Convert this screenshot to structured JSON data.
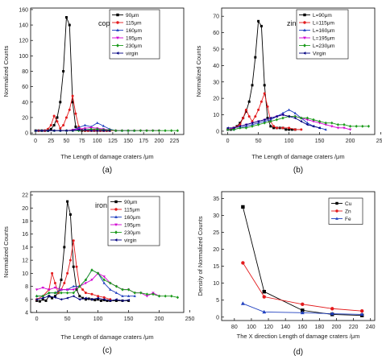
{
  "chart_data": [
    {
      "type": "line",
      "panel_label": "(a)",
      "annotation": "copper",
      "xlabel": "The  Length of damage craters /μm",
      "ylabel": "Normalized Counts",
      "xlim": [
        -8,
        240
      ],
      "ylim": [
        -2,
        162
      ],
      "xticks": [
        0,
        25,
        50,
        75,
        100,
        125,
        150,
        175,
        200,
        225
      ],
      "yticks": [
        0,
        20,
        40,
        60,
        80,
        100,
        120,
        140,
        160
      ],
      "legend_position": "top-right",
      "series": [
        {
          "name": "90μm",
          "color": "#000000",
          "marker": "square",
          "x": [
            0,
            5,
            10,
            15,
            20,
            25,
            30,
            35,
            40,
            45,
            50,
            55,
            60,
            65,
            70,
            75,
            80,
            85,
            90,
            95,
            100,
            105,
            110,
            115,
            120
          ],
          "y": [
            3,
            3,
            3,
            3,
            3,
            5,
            10,
            20,
            40,
            80,
            150,
            140,
            40,
            8,
            4,
            3,
            3,
            3,
            3,
            3,
            3,
            3,
            3,
            3,
            3
          ]
        },
        {
          "name": "115μm",
          "color": "#e31a1c",
          "marker": "circle",
          "x": [
            0,
            5,
            10,
            15,
            20,
            25,
            30,
            35,
            40,
            45,
            50,
            55,
            60,
            65,
            70,
            75,
            80,
            85,
            90,
            95,
            100,
            105,
            110,
            115,
            120,
            130
          ],
          "y": [
            3,
            3,
            3,
            3,
            5,
            10,
            22,
            15,
            6,
            10,
            20,
            30,
            48,
            25,
            8,
            4,
            3,
            3,
            3,
            3,
            3,
            3,
            3,
            3,
            3,
            3
          ]
        },
        {
          "name": "160μm",
          "color": "#1f3fbf",
          "marker": "triangle",
          "x": [
            0,
            10,
            20,
            30,
            40,
            50,
            60,
            70,
            80,
            90,
            100,
            110,
            120,
            130,
            140,
            150,
            160
          ],
          "y": [
            3,
            3,
            3,
            3,
            3,
            3,
            4,
            7,
            10,
            8,
            13,
            9,
            5,
            3,
            3,
            3,
            3
          ]
        },
        {
          "name": "195μm",
          "color": "#d100d1",
          "marker": "triangle-down",
          "x": [
            0,
            10,
            20,
            30,
            40,
            50,
            60,
            70,
            80,
            90,
            100,
            110,
            120,
            130,
            140,
            150,
            160,
            170,
            180,
            190,
            200
          ],
          "y": [
            3,
            3,
            3,
            3,
            3,
            3,
            4,
            5,
            6,
            7,
            6,
            5,
            4,
            3,
            3,
            3,
            3,
            3,
            3,
            3,
            3
          ]
        },
        {
          "name": "230μm",
          "color": "#1a9a1a",
          "marker": "diamond",
          "x": [
            0,
            10,
            20,
            30,
            40,
            50,
            60,
            70,
            80,
            90,
            100,
            110,
            120,
            130,
            140,
            150,
            160,
            170,
            180,
            190,
            200,
            210,
            220,
            230
          ],
          "y": [
            3,
            3,
            3,
            3,
            3,
            3,
            3,
            3,
            4,
            5,
            5,
            4,
            4,
            3,
            3,
            3,
            3,
            3,
            3,
            3,
            3,
            3,
            3,
            3
          ]
        },
        {
          "name": "virgin",
          "color": "#000080",
          "marker": "triangle-left",
          "x": [
            0,
            10,
            20,
            30,
            40,
            50,
            60,
            70,
            80,
            90,
            100,
            110,
            120
          ],
          "y": [
            3,
            3,
            3,
            3,
            3,
            3,
            3,
            4,
            4,
            3,
            3,
            3,
            3
          ]
        }
      ]
    },
    {
      "type": "line",
      "panel_label": "(b)",
      "annotation": "zinc",
      "xlabel": "The  Length of damage craters /μm",
      "ylabel": "Normalized Counts",
      "xlim": [
        -10,
        240
      ],
      "ylim": [
        -2,
        75
      ],
      "xticks": [
        0,
        50,
        100,
        150,
        200,
        250
      ],
      "yticks": [
        0,
        10,
        20,
        30,
        40,
        50,
        60,
        70
      ],
      "legend_position": "top-right",
      "series": [
        {
          "name": "L=90μm",
          "color": "#000000",
          "marker": "square",
          "x": [
            0,
            5,
            10,
            15,
            20,
            25,
            30,
            35,
            40,
            45,
            50,
            55,
            60,
            65,
            70,
            75,
            80,
            85,
            90,
            95,
            100,
            105,
            110
          ],
          "y": [
            1,
            1,
            2,
            3,
            5,
            8,
            12,
            18,
            28,
            45,
            67,
            64,
            28,
            8,
            3,
            2,
            2,
            2,
            2,
            1,
            1,
            1,
            1
          ]
        },
        {
          "name": "L=115μm",
          "color": "#e31a1c",
          "marker": "circle",
          "x": [
            0,
            10,
            20,
            25,
            30,
            35,
            40,
            45,
            50,
            55,
            60,
            65,
            70,
            75,
            80,
            90,
            100,
            110,
            120
          ],
          "y": [
            1,
            2,
            4,
            8,
            13,
            9,
            6,
            9,
            13,
            18,
            23,
            15,
            6,
            3,
            2,
            2,
            2,
            1,
            1
          ]
        },
        {
          "name": "L=160μm",
          "color": "#1f3fbf",
          "marker": "triangle",
          "x": [
            0,
            10,
            20,
            30,
            40,
            50,
            60,
            70,
            80,
            90,
            100,
            110,
            120,
            130,
            140,
            150,
            160
          ],
          "y": [
            1,
            1,
            2,
            3,
            4,
            5,
            6,
            7,
            9,
            11,
            13,
            11,
            8,
            5,
            3,
            2,
            1
          ]
        },
        {
          "name": "L=195μm",
          "color": "#d100d1",
          "marker": "triangle-down",
          "x": [
            0,
            10,
            20,
            30,
            40,
            50,
            60,
            70,
            80,
            90,
            100,
            110,
            120,
            130,
            140,
            150,
            160,
            170,
            180,
            190,
            200
          ],
          "y": [
            1,
            2,
            3,
            4,
            5,
            6,
            7,
            8,
            9,
            10,
            9,
            9,
            8,
            7,
            6,
            5,
            4,
            3,
            2,
            2,
            1
          ]
        },
        {
          "name": "L=230μm",
          "color": "#1a9a1a",
          "marker": "diamond",
          "x": [
            0,
            10,
            20,
            30,
            40,
            50,
            60,
            70,
            80,
            90,
            100,
            110,
            120,
            130,
            140,
            150,
            160,
            170,
            180,
            190,
            200,
            210,
            220,
            230
          ],
          "y": [
            1,
            1,
            2,
            2,
            3,
            4,
            5,
            6,
            7,
            8,
            9,
            9,
            8,
            8,
            7,
            6,
            5,
            5,
            4,
            4,
            3,
            3,
            3,
            3
          ]
        },
        {
          "name": "Virgin",
          "color": "#000080",
          "marker": "triangle-left",
          "x": [
            0,
            10,
            20,
            30,
            40,
            50,
            60,
            70,
            80,
            90,
            100,
            110,
            120,
            130,
            140,
            150
          ],
          "y": [
            2,
            2,
            3,
            4,
            5,
            6,
            7,
            8,
            9,
            10,
            9,
            8,
            6,
            4,
            3,
            2
          ]
        }
      ]
    },
    {
      "type": "line",
      "panel_label": "(c)",
      "annotation": "iron",
      "xlabel": "The  Length of damage craters /μm",
      "ylabel": "Normalized Counts",
      "xlim": [
        -10,
        240
      ],
      "ylim": [
        4,
        22.5
      ],
      "xticks": [
        0,
        50,
        100,
        150,
        200,
        250
      ],
      "yticks": [
        4,
        6,
        8,
        10,
        12,
        14,
        16,
        18,
        20,
        22
      ],
      "legend_position": "top-right",
      "series": [
        {
          "name": "90μm",
          "color": "#000000",
          "marker": "square",
          "x": [
            0,
            5,
            10,
            15,
            20,
            25,
            30,
            35,
            40,
            45,
            50,
            55,
            60,
            65,
            70,
            75,
            80,
            85,
            90,
            95,
            100,
            105,
            110,
            115,
            120,
            130,
            140,
            150
          ],
          "y": [
            5.8,
            5.7,
            6,
            5.8,
            6.5,
            6.2,
            6.5,
            7,
            9,
            14,
            21,
            19,
            11,
            7.5,
            6.5,
            6.2,
            6,
            6.1,
            6,
            5.9,
            6,
            5.8,
            5.9,
            5.8,
            5.8,
            5.8,
            5.8,
            5.8
          ]
        },
        {
          "name": "115μm",
          "color": "#e31a1c",
          "marker": "circle",
          "x": [
            0,
            10,
            20,
            25,
            30,
            35,
            40,
            45,
            50,
            55,
            60,
            65,
            70,
            75,
            80,
            90,
            100,
            110,
            120
          ],
          "y": [
            6,
            6.5,
            7.5,
            10,
            8.5,
            7,
            7.5,
            8.5,
            10,
            12,
            15,
            11,
            8,
            7.5,
            7,
            6.8,
            6.5,
            6.3,
            6
          ]
        },
        {
          "name": "160μm",
          "color": "#1f3fbf",
          "marker": "triangle",
          "x": [
            0,
            10,
            20,
            30,
            40,
            50,
            60,
            70,
            80,
            90,
            100,
            110,
            120,
            130,
            140,
            150,
            160
          ],
          "y": [
            6.5,
            6.5,
            7,
            7,
            7.5,
            7.5,
            8,
            8,
            9,
            10.5,
            10,
            8.5,
            7.5,
            7,
            6.5,
            6.5,
            6.5
          ]
        },
        {
          "name": "195μm",
          "color": "#d100d1",
          "marker": "triangle-down",
          "x": [
            0,
            10,
            20,
            30,
            40,
            50,
            60,
            70,
            80,
            90,
            100,
            110,
            120,
            130,
            140,
            150,
            160,
            170,
            180,
            190,
            200
          ],
          "y": [
            7.5,
            7.8,
            7.5,
            7.8,
            7.5,
            7.5,
            7.5,
            8,
            8.5,
            9,
            10,
            9.5,
            8.5,
            8,
            7.5,
            7.5,
            7,
            7,
            6.5,
            7,
            6.5
          ]
        },
        {
          "name": "230μm",
          "color": "#1a9a1a",
          "marker": "diamond",
          "x": [
            0,
            10,
            20,
            30,
            40,
            50,
            60,
            70,
            80,
            90,
            100,
            110,
            120,
            130,
            140,
            150,
            160,
            170,
            180,
            190,
            200,
            210,
            220,
            230
          ],
          "y": [
            6.5,
            6.5,
            7,
            7,
            7,
            7,
            7,
            8,
            9,
            10.5,
            10,
            9,
            8.5,
            8,
            7.5,
            7.5,
            7,
            7,
            6.8,
            6.8,
            6.5,
            6.5,
            6.5,
            6.3
          ]
        },
        {
          "name": "virgin",
          "color": "#000080",
          "marker": "triangle-left",
          "x": [
            0,
            10,
            20,
            30,
            40,
            50,
            60,
            70,
            80,
            90,
            100,
            110,
            120,
            130,
            140,
            150
          ],
          "y": [
            6,
            6.2,
            6.5,
            6.3,
            6,
            6.2,
            6.5,
            6,
            6.2,
            6,
            6.2,
            6,
            5.8,
            6,
            5.8,
            5.9
          ]
        }
      ]
    },
    {
      "type": "line",
      "panel_label": "(d)",
      "annotation": "",
      "xlabel": "The X direction Length of damage craters /μm",
      "ylabel": "Density of Normalized Counts",
      "xlim": [
        65,
        245
      ],
      "ylim": [
        -1,
        37
      ],
      "xticks": [
        80,
        100,
        120,
        140,
        160,
        180,
        200,
        220,
        240
      ],
      "yticks": [
        0,
        5,
        10,
        15,
        20,
        25,
        30,
        35
      ],
      "legend_position": "top-right",
      "series": [
        {
          "name": "Cu",
          "color": "#000000",
          "marker": "square",
          "x": [
            90,
            115,
            160,
            195,
            230
          ],
          "y": [
            32.5,
            7.5,
            2,
            0.8,
            0.5
          ]
        },
        {
          "name": "Zn",
          "color": "#e31a1c",
          "marker": "circle",
          "x": [
            90,
            115,
            160,
            195,
            230
          ],
          "y": [
            16,
            6,
            3.8,
            2.5,
            1.8
          ]
        },
        {
          "name": "Fe",
          "color": "#1f3fbf",
          "marker": "triangle",
          "x": [
            90,
            115,
            160,
            195,
            230
          ],
          "y": [
            4,
            1.5,
            1.3,
            1.0,
            0.8
          ]
        }
      ]
    }
  ]
}
